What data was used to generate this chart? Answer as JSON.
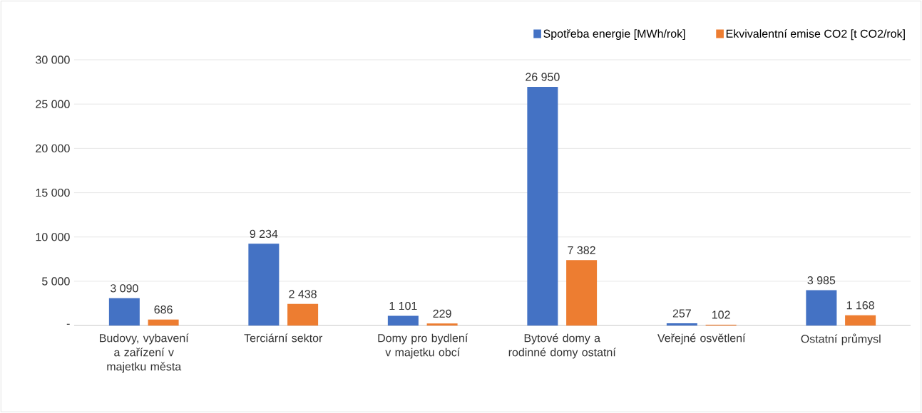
{
  "chart_data": {
    "type": "bar",
    "categories": [
      "Budovy, vybavení a zařízení v majetku města",
      "Terciární sektor",
      "Domy pro bydlení v majetku obcí",
      "Bytové domy a rodinné domy ostatní",
      "Veřejné osvětlení",
      "Ostatní průmysl"
    ],
    "series": [
      {
        "name": "Spotřeba energie [MWh/rok]",
        "color": "#4472c4",
        "values": [
          3090,
          9234,
          1101,
          26950,
          257,
          3985
        ],
        "value_labels": [
          "3 090",
          "9 234",
          "1 101",
          "26 950",
          "257",
          "3 985"
        ]
      },
      {
        "name": "Ekvivalentní emise CO2 [t CO2/rok]",
        "color": "#ed7d31",
        "values": [
          686,
          2438,
          229,
          7382,
          102,
          1168
        ],
        "value_labels": [
          "686",
          "2 438",
          "229",
          "7 382",
          "102",
          "1 168"
        ]
      }
    ],
    "ylim": [
      0,
      30000
    ],
    "yticks": [
      {
        "value": 0,
        "label": "-"
      },
      {
        "value": 5000,
        "label": "5 000"
      },
      {
        "value": 10000,
        "label": "10 000"
      },
      {
        "value": 15000,
        "label": "15 000"
      },
      {
        "value": 20000,
        "label": "20 000"
      },
      {
        "value": 25000,
        "label": "25 000"
      },
      {
        "value": 30000,
        "label": "30 000"
      }
    ],
    "grid": "y",
    "legend": "top right"
  }
}
